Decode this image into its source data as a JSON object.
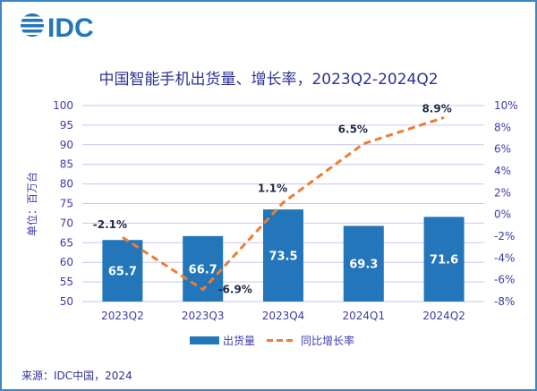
{
  "logo": {
    "text": "IDC",
    "color": "#2276b9"
  },
  "source": "来源：IDC中国，2024",
  "chart_data": {
    "type": "bar+line",
    "title": "中国智能手机出货量、增长率，2023Q2-2024Q2",
    "ylabel": "单位：百万台",
    "categories": [
      "2023Q2",
      "2023Q3",
      "2023Q4",
      "2024Q1",
      "2024Q2"
    ],
    "series": [
      {
        "name": "出货量",
        "type": "bar",
        "axis": "left",
        "color": "#2276b9",
        "values": [
          65.7,
          66.7,
          73.5,
          69.3,
          71.6
        ],
        "labels": [
          "65.7",
          "66.7",
          "73.5",
          "69.3",
          "71.6"
        ]
      },
      {
        "name": "同比增长率",
        "type": "line",
        "style": "dashed",
        "axis": "right",
        "color": "#ed7d31",
        "values": [
          -2.1,
          -6.9,
          1.1,
          6.5,
          8.9
        ],
        "labels": [
          "-2.1%",
          "-6.9%",
          "1.1%",
          "6.5%",
          "8.9%"
        ]
      }
    ],
    "left_axis": {
      "ylim": [
        50,
        100
      ],
      "ticks": [
        "50",
        "55",
        "60",
        "65",
        "70",
        "75",
        "80",
        "85",
        "90",
        "95",
        "100"
      ]
    },
    "right_axis": {
      "ylim": [
        -8,
        10
      ],
      "ticks": [
        "-8%",
        "-6%",
        "-4%",
        "-2%",
        "0%",
        "2%",
        "4%",
        "6%",
        "8%",
        "10%"
      ]
    },
    "grid": true,
    "legend": "bottom"
  }
}
